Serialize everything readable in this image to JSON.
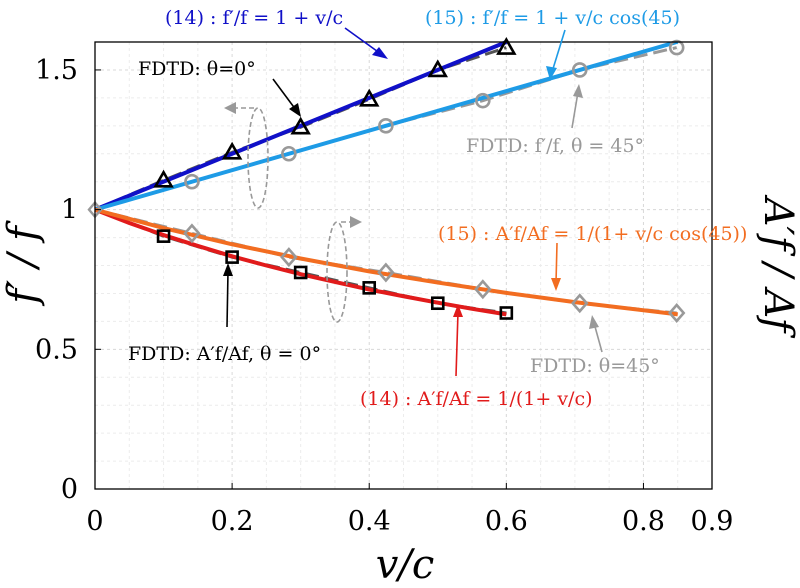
{
  "chart_data": {
    "type": "line",
    "xlabel": "v/c",
    "ylabel_left": "f′ / f",
    "ylabel_right": "A′f / Af",
    "xlim": [
      0,
      0.9
    ],
    "ylim": [
      0,
      1.6
    ],
    "x_ticks": [
      0,
      0.2,
      0.4,
      0.6,
      0.8,
      0.9
    ],
    "x_tick_labels": [
      "0",
      "0.2",
      "0.4",
      "0.6",
      "0.8",
      "0.9"
    ],
    "y_ticks": [
      0,
      0.5,
      1,
      1.5
    ],
    "y_tick_labels": [
      "0",
      "0.5",
      "1",
      "1.5"
    ],
    "grid": true,
    "series": [
      {
        "name": "(14): f′/f = 1 + v/c",
        "kind": "line",
        "color": "#1010c8",
        "x": [
          0,
          0.6
        ],
        "y": [
          1.0,
          1.6
        ]
      },
      {
        "name": "FDTD: θ=0°",
        "kind": "dashed-markers",
        "marker": "triangle",
        "color": "#000000",
        "x": [
          0,
          0.1,
          0.2,
          0.3,
          0.4,
          0.5,
          0.6
        ],
        "y": [
          1.0,
          1.105,
          1.205,
          1.295,
          1.395,
          1.5,
          1.58
        ]
      },
      {
        "name": "(15): f′/f = 1 + v/c cos(45)",
        "kind": "line",
        "color": "#1e9be6",
        "x": [
          0,
          0.85
        ],
        "y": [
          1.0,
          1.601
        ]
      },
      {
        "name": "FDTD: f′/f, θ = 45°",
        "kind": "dashed-markers",
        "marker": "circle",
        "color": "#999999",
        "x": [
          0,
          0.1414,
          0.2828,
          0.4243,
          0.5657,
          0.7071,
          0.8485
        ],
        "y": [
          1.0,
          1.1,
          1.2,
          1.3,
          1.39,
          1.5,
          1.58
        ]
      },
      {
        "name": "(14): A′f/Af = 1/(1 + v/c)",
        "kind": "line",
        "color": "#e11b1b",
        "x": [
          0,
          0.05,
          0.1,
          0.15,
          0.2,
          0.25,
          0.3,
          0.35,
          0.4,
          0.45,
          0.5,
          0.55,
          0.6
        ],
        "y": [
          1.0,
          0.952,
          0.909,
          0.87,
          0.833,
          0.8,
          0.769,
          0.741,
          0.714,
          0.69,
          0.667,
          0.645,
          0.625
        ]
      },
      {
        "name": "FDTD: A′f/Af, θ = 0°",
        "kind": "dashed-markers",
        "marker": "square",
        "color": "#000000",
        "x": [
          0,
          0.1,
          0.2,
          0.3,
          0.4,
          0.5,
          0.6
        ],
        "y": [
          1.0,
          0.905,
          0.83,
          0.775,
          0.72,
          0.665,
          0.63
        ]
      },
      {
        "name": "(15): A′f/Af = 1/(1 + v/c cos(45))",
        "kind": "line",
        "color": "#f26d21",
        "x": [
          0,
          0.1,
          0.2,
          0.3,
          0.4,
          0.5,
          0.6,
          0.7,
          0.85
        ],
        "y": [
          1.0,
          0.934,
          0.876,
          0.825,
          0.779,
          0.739,
          0.702,
          0.669,
          0.625
        ]
      },
      {
        "name": "FDTD: θ=45°",
        "kind": "dashed-markers",
        "marker": "diamond",
        "color": "#999999",
        "x": [
          0,
          0.1414,
          0.2828,
          0.4243,
          0.5657,
          0.7071,
          0.8485
        ],
        "y": [
          1.0,
          0.915,
          0.83,
          0.775,
          0.715,
          0.665,
          0.63
        ]
      }
    ],
    "annotations": [
      {
        "id": "eq14f",
        "text": "(14) :  f′/f = 1 + v/c",
        "color": "#1010c8"
      },
      {
        "id": "eq15f",
        "text": "(15) :  f′/f = 1 + v/c cos(45)",
        "color": "#1e9be6"
      },
      {
        "id": "fdtd0f",
        "text": "FDTD: θ=0°",
        "color": "#000000"
      },
      {
        "id": "fdtd45f",
        "text": "FDTD: f′/f, θ = 45°",
        "color": "#999999"
      },
      {
        "id": "eq15a",
        "text": "(15) :  A′f/Af = 1/(1+ v/c cos(45))",
        "color": "#f26d21"
      },
      {
        "id": "fdtd0a",
        "text": "FDTD: A′f/Af, θ = 0°",
        "color": "#000000"
      },
      {
        "id": "fdtd45a",
        "text": "FDTD: θ=45°",
        "color": "#999999"
      },
      {
        "id": "eq14a",
        "text": "(14) :  A′f/Af = 1/(1+ v/c)",
        "color": "#e11b1b"
      }
    ]
  }
}
